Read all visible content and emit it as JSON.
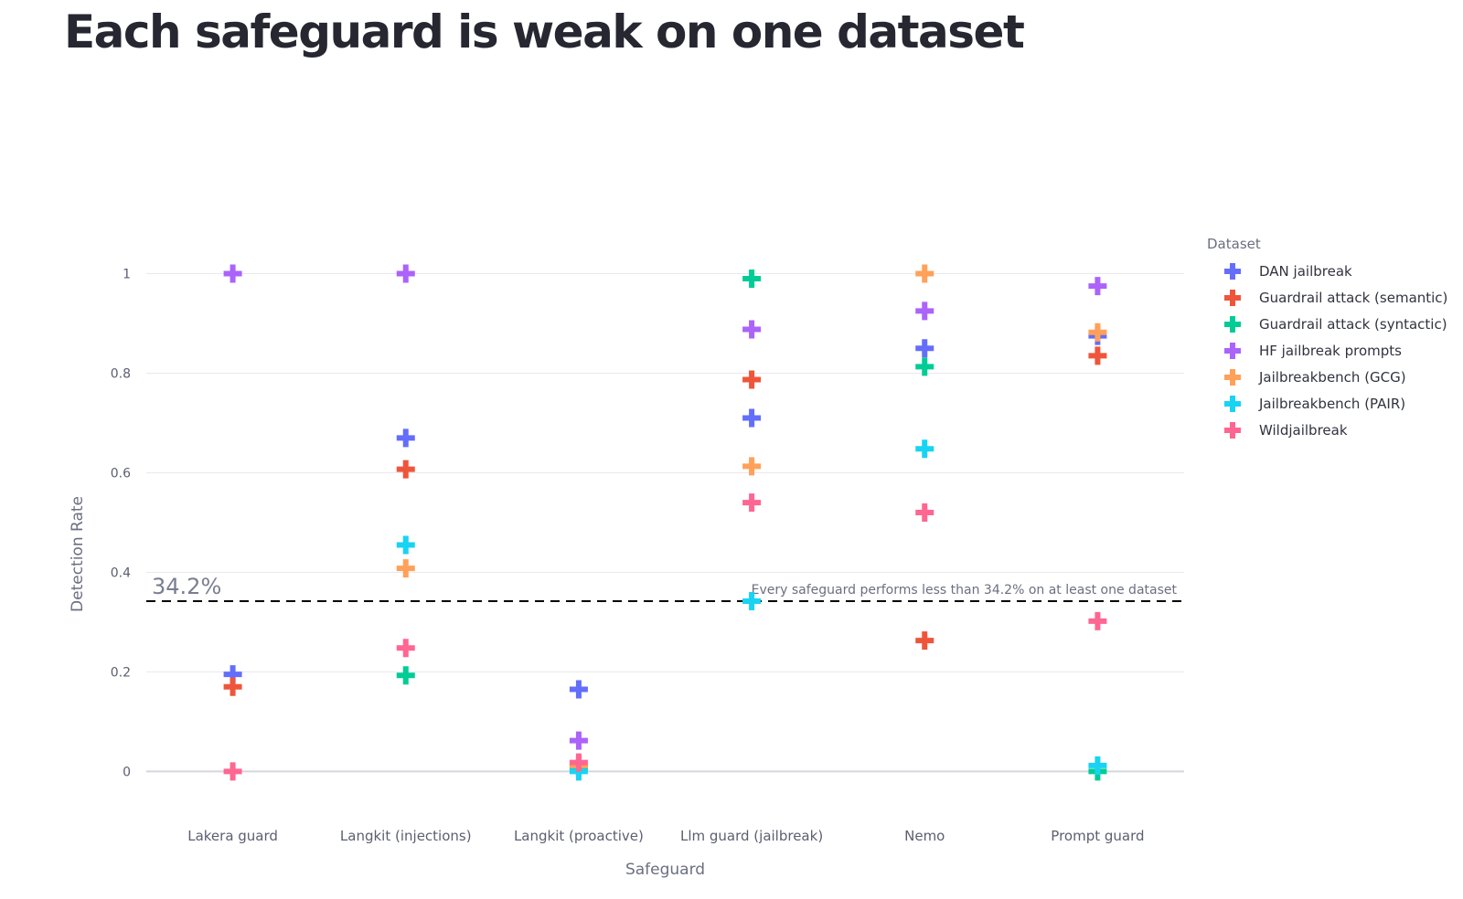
{
  "page_title": "Each safeguard is weak on one dataset",
  "chart_data": {
    "type": "scatter",
    "xlabel": "Safeguard",
    "ylabel": "Detection Rate",
    "ylim": [
      -0.08,
      1.1
    ],
    "yticks": [
      0,
      0.2,
      0.4,
      0.6,
      0.8,
      1
    ],
    "ytick_labels": [
      "0",
      "0.2",
      "0.4",
      "0.6",
      "0.8",
      "1"
    ],
    "grid": true,
    "categories": [
      "Lakera guard",
      "Langkit (injections)",
      "Langkit (proactive)",
      "Llm guard (jailbreak)",
      "Nemo",
      "Prompt guard"
    ],
    "legend_title": "Dataset",
    "legend_position": "right",
    "marker": "cross",
    "series": [
      {
        "name": "DAN jailbreak",
        "color": "#636efa",
        "values": [
          0.195,
          0.67,
          0.165,
          0.71,
          0.85,
          0.875
        ]
      },
      {
        "name": "Guardrail attack (semantic)",
        "color": "#ef553b",
        "values": [
          0.17,
          0.607,
          0.01,
          0.787,
          0.263,
          0.835
        ]
      },
      {
        "name": "Guardrail attack (syntactic)",
        "color": "#00cc96",
        "values": [
          null,
          0.193,
          0.005,
          0.99,
          0.813,
          0.0
        ]
      },
      {
        "name": "HF jailbreak prompts",
        "color": "#ab63fa",
        "values": [
          1.0,
          1.0,
          0.062,
          0.888,
          0.925,
          0.975
        ]
      },
      {
        "name": "Jailbreakbench (GCG)",
        "color": "#ffa15a",
        "values": [
          null,
          0.408,
          0.012,
          0.613,
          1.0,
          0.882
        ]
      },
      {
        "name": "Jailbreakbench (PAIR)",
        "color": "#19d3f3",
        "values": [
          null,
          0.455,
          0.0,
          0.342,
          0.648,
          0.012
        ]
      },
      {
        "name": "Wildjailbreak",
        "color": "#ff6692",
        "values": [
          0.0,
          0.248,
          0.018,
          0.54,
          0.52,
          0.302
        ]
      }
    ],
    "threshold": {
      "value": 0.342,
      "label": "34.2%",
      "annotation": "Every safeguard performs less than 34.2% on at least one dataset"
    }
  }
}
